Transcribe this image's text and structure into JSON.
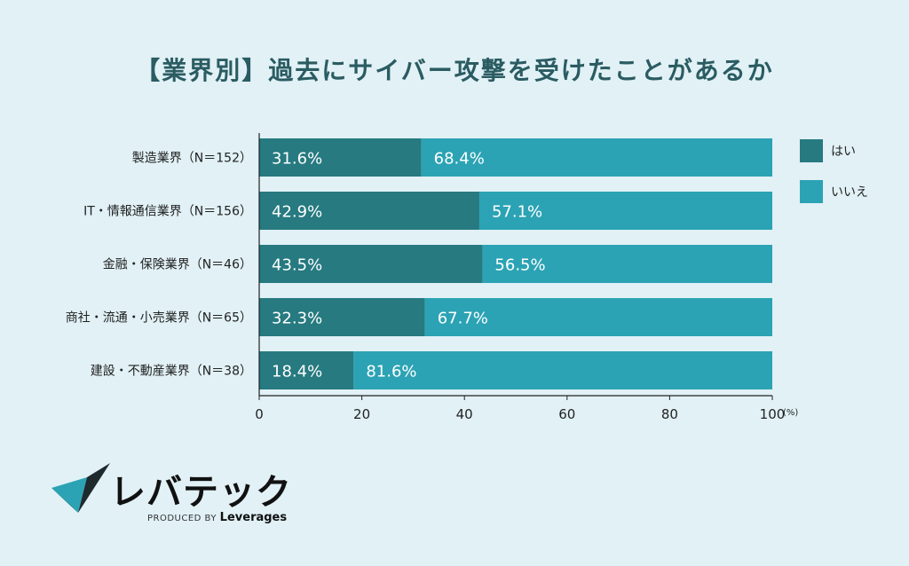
{
  "chart_data": {
    "type": "bar",
    "orientation": "horizontal",
    "stacked": true,
    "title": "【業界別】過去にサイバー攻撃を受けたことがあるか",
    "categories": [
      "製造業界（N＝152）",
      "IT・情報通信業界（N＝156）",
      "金融・保険業界（N＝46）",
      "商社・流通・小売業界（N＝65）",
      "建設・不動産業界（N＝38）"
    ],
    "series": [
      {
        "name": "はい",
        "color": "#267a80",
        "values": [
          31.6,
          42.9,
          43.5,
          32.3,
          18.4
        ],
        "labels": [
          "31.6%",
          "42.9%",
          "43.5%",
          "32.3%",
          "18.4%"
        ]
      },
      {
        "name": "いいえ",
        "color": "#2ba3b4",
        "values": [
          68.4,
          57.1,
          56.5,
          67.7,
          81.6
        ],
        "labels": [
          "68.4%",
          "57.1%",
          "56.5%",
          "67.7%",
          "81.6%"
        ]
      }
    ],
    "xlim": [
      0,
      100
    ],
    "xticks": [
      "0",
      "20",
      "40",
      "60",
      "80",
      "100"
    ],
    "xunit": "(%)",
    "legend_position": "right",
    "grid": false
  },
  "colors": {
    "background": "#e1f1f6",
    "title": "#2a5c62",
    "yes": "#267a80",
    "no": "#2ba3b4"
  },
  "logo": {
    "text": "レバテック",
    "produced_by": "PRODUCED BY",
    "brand": "Leverages"
  }
}
